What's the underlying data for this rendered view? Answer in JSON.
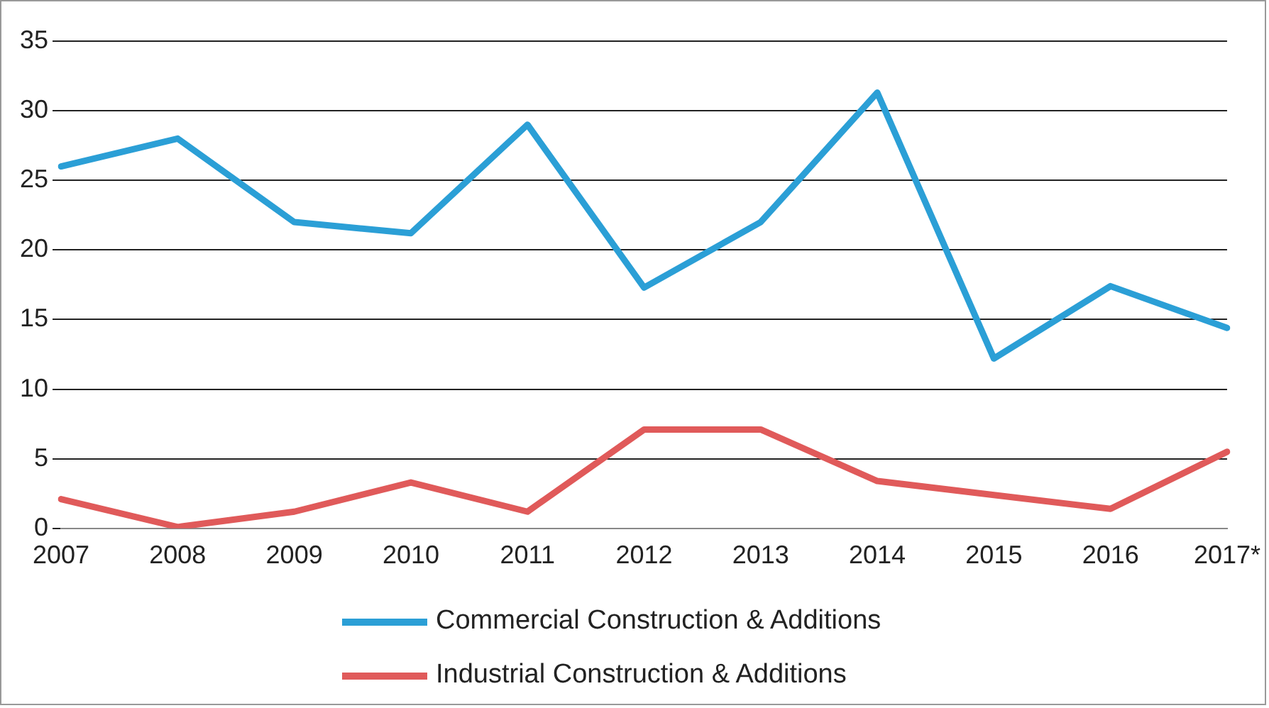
{
  "chart_data": {
    "type": "line",
    "categories": [
      "2007",
      "2008",
      "2009",
      "2010",
      "2011",
      "2012",
      "2013",
      "2014",
      "2015",
      "2016",
      "2017*"
    ],
    "series": [
      {
        "name": "Commercial Construction & Additions",
        "color": "#2b9fd6",
        "values": [
          26,
          28,
          22,
          21.2,
          29,
          17.3,
          22,
          31.3,
          12.2,
          17.4,
          14.4
        ]
      },
      {
        "name": "Industrial Construction & Additions",
        "color": "#e05a5a",
        "values": [
          2.1,
          0.1,
          1.2,
          3.3,
          1.2,
          7.1,
          7.1,
          3.4,
          2.4,
          1.4,
          5.5
        ]
      }
    ],
    "ylim": [
      0,
      35
    ],
    "yticks": [
      0,
      5,
      10,
      15,
      20,
      25,
      30,
      35
    ],
    "grid": "y",
    "legend": "bottom",
    "marker": "none",
    "line_style": "solid"
  }
}
